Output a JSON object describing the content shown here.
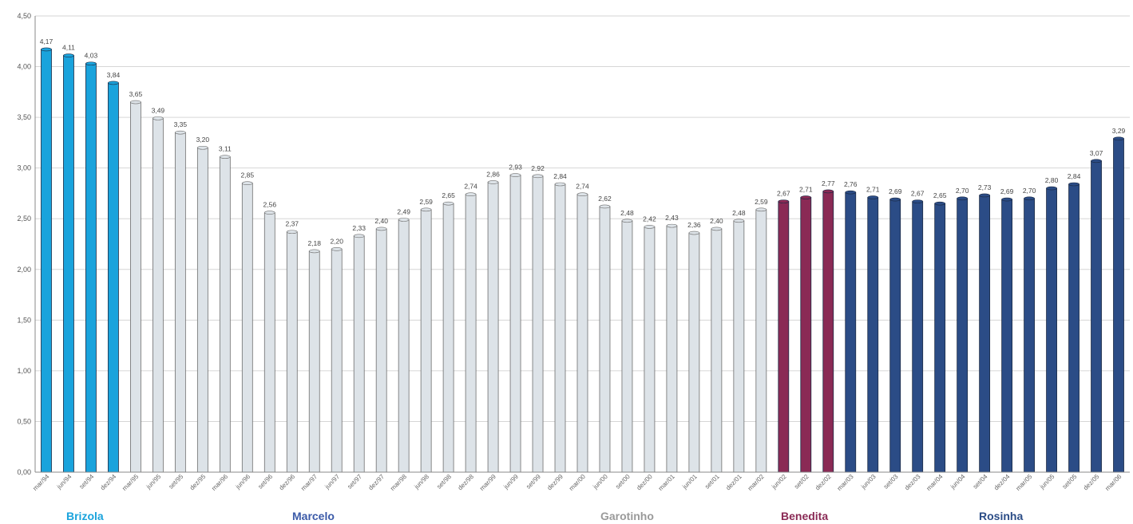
{
  "chart_data": {
    "type": "bar",
    "title": "",
    "xlabel": "",
    "ylabel": "",
    "ylim": [
      0,
      4.5
    ],
    "yticks": [
      "0,00",
      "0,50",
      "1,00",
      "1,50",
      "2,00",
      "2,50",
      "3,00",
      "3,50",
      "4,00",
      "4,50"
    ],
    "grid": true,
    "categories": [
      "mar/94",
      "jun/94",
      "set/94",
      "dez/94",
      "mar/95",
      "jun/95",
      "set/95",
      "dez/95",
      "mar/96",
      "jun/96",
      "set/96",
      "dez/96",
      "mar/97",
      "jun/97",
      "set/97",
      "dez/97",
      "mar/98",
      "jun/98",
      "set/98",
      "dez/98",
      "mar/99",
      "jun/99",
      "set/99",
      "dez/99",
      "mar/00",
      "jun/00",
      "set/00",
      "dez/00",
      "mar/01",
      "jun/01",
      "set/01",
      "dez/01",
      "mar/02",
      "jun/02",
      "set/02",
      "dez/02",
      "mar/03",
      "jun/03",
      "set/03",
      "dez/03",
      "mar/04",
      "jun/04",
      "set/04",
      "dez/04",
      "mar/05",
      "jun/05",
      "set/05",
      "dez/05",
      "mar/06"
    ],
    "values": [
      4.17,
      4.11,
      4.03,
      3.84,
      3.65,
      3.49,
      3.35,
      3.2,
      3.11,
      2.85,
      2.56,
      2.37,
      2.18,
      2.2,
      2.33,
      2.4,
      2.49,
      2.59,
      2.65,
      2.74,
      2.86,
      2.93,
      2.92,
      2.84,
      2.74,
      2.62,
      2.48,
      2.42,
      2.43,
      2.36,
      2.4,
      2.48,
      2.59,
      2.67,
      2.71,
      2.77,
      2.76,
      2.71,
      2.69,
      2.67,
      2.65,
      2.7,
      2.73,
      2.69,
      2.7,
      2.8,
      2.84,
      3.07,
      3.29
    ],
    "value_labels": [
      "4,17",
      "4,11",
      "4,03",
      "3,84",
      "3,65",
      "3,49",
      "3,35",
      "3,20",
      "3,11",
      "2,85",
      "2,56",
      "2,37",
      "2,18",
      "2,20",
      "2,33",
      "2,40",
      "2,49",
      "2,59",
      "2,65",
      "2,74",
      "2,86",
      "2,93",
      "2,92",
      "2,84",
      "2,74",
      "2,62",
      "2,48",
      "2,42",
      "2,43",
      "2,36",
      "2,40",
      "2,48",
      "2,59",
      "2,67",
      "2,71",
      "2,77",
      "2,76",
      "2,71",
      "2,69",
      "2,67",
      "2,65",
      "2,70",
      "2,73",
      "2,69",
      "2,70",
      "2,80",
      "2,84",
      "3,07",
      "3,29"
    ],
    "groups": [
      {
        "name": "Brizola",
        "start": 0,
        "end": 3,
        "color": "#1aa3dc",
        "label_color": "#1aa3dc"
      },
      {
        "name": "Marcelo",
        "start": 4,
        "end": 32,
        "color": "#dde3e8",
        "label_color": "#3b5aa8"
      },
      {
        "name": "Garotinho",
        "start": 4,
        "end": 32,
        "color": "#dde3e8",
        "label_color": "#9a9a9a"
      },
      {
        "name": "Benedita",
        "start": 33,
        "end": 35,
        "color": "#8a2a55",
        "label_color": "#8a2a55"
      },
      {
        "name": "Rosinha",
        "start": 36,
        "end": 48,
        "color": "#2b4c86",
        "label_color": "#2b4c86"
      }
    ]
  }
}
